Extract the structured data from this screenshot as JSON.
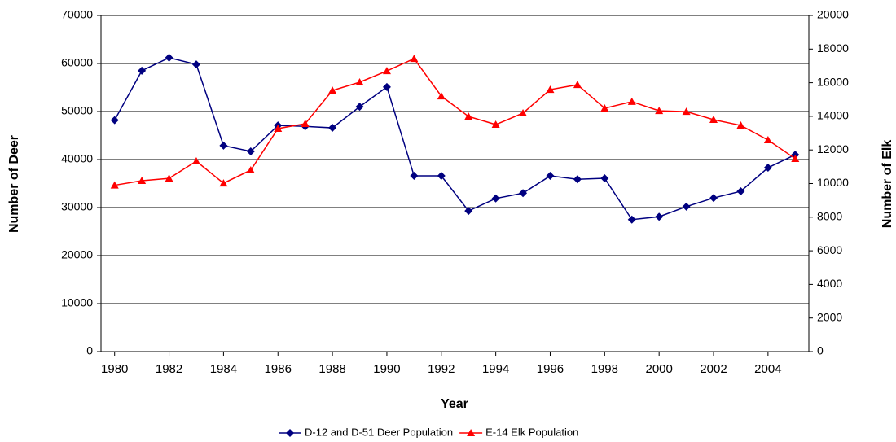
{
  "chart_data": {
    "type": "line",
    "x": [
      1980,
      1981,
      1982,
      1983,
      1984,
      1985,
      1986,
      1987,
      1988,
      1989,
      1990,
      1991,
      1992,
      1993,
      1994,
      1995,
      1996,
      1997,
      1998,
      1999,
      2000,
      2001,
      2002,
      2003,
      2004,
      2005
    ],
    "xlim": [
      1979.5,
      2005.5
    ],
    "xticks": [
      1980,
      1982,
      1984,
      1986,
      1988,
      1990,
      1992,
      1994,
      1996,
      1998,
      2000,
      2002,
      2004
    ],
    "xlabel": "Year",
    "ylabel": "Number of Deer",
    "y2label": "Number of Elk",
    "ylim": [
      0,
      70000
    ],
    "yticks": [
      0,
      10000,
      20000,
      30000,
      40000,
      50000,
      60000,
      70000
    ],
    "y2lim": [
      0,
      20000
    ],
    "y2ticks": [
      0,
      2000,
      4000,
      6000,
      8000,
      10000,
      12000,
      14000,
      16000,
      18000,
      20000
    ],
    "grid": true,
    "legend": "bottom",
    "series": [
      {
        "name": "D-12 and D-51 Deer Population",
        "color": "#000080",
        "marker": "diamond",
        "values": [
          48200,
          58500,
          61200,
          59800,
          42900,
          41700,
          47100,
          46900,
          46600,
          51000,
          55100,
          36600,
          36600,
          29300,
          31900,
          33000,
          36600,
          35900,
          36100,
          27500,
          28100,
          30200,
          32000,
          33400,
          38300,
          41000
        ]
      },
      {
        "name": "E-14 Elk Population",
        "color": "#ff0000",
        "marker": "triangle",
        "axis": "y2",
        "values": [
          9900,
          10170,
          10310,
          11330,
          10020,
          10800,
          13270,
          13560,
          15540,
          16030,
          16700,
          17430,
          15200,
          13990,
          13510,
          14190,
          15590,
          15880,
          14480,
          14870,
          14330,
          14280,
          13800,
          13460,
          12590,
          11480
        ]
      }
    ]
  }
}
